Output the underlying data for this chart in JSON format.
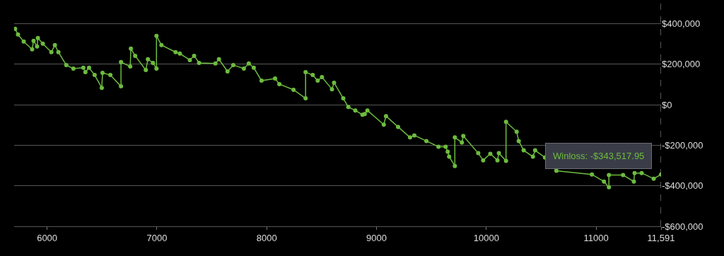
{
  "chart_data": {
    "type": "line",
    "marker": "circle",
    "line_style": "solid",
    "grid": "y",
    "x": [
      5709,
      5735,
      5787,
      5864,
      5877,
      5909,
      5916,
      5961,
      6039,
      6071,
      6103,
      6175,
      6239,
      6330,
      6349,
      6382,
      6433,
      6498,
      6505,
      6576,
      6673,
      6673,
      6757,
      6763,
      6802,
      6899,
      6918,
      6964,
      6996,
      6996,
      7041,
      7170,
      7209,
      7300,
      7339,
      7384,
      7533,
      7565,
      7643,
      7695,
      7792,
      7837,
      7882,
      7953,
      8076,
      8115,
      8244,
      8354,
      8354,
      8419,
      8464,
      8503,
      8594,
      8613,
      8697,
      8743,
      8807,
      8872,
      8892,
      8917,
      9066,
      9086,
      9196,
      9305,
      9344,
      9454,
      9564,
      9629,
      9648,
      9661,
      9713,
      9713,
      9777,
      9790,
      9926,
      9971,
      10036,
      10101,
      10114,
      10179,
      10179,
      10276,
      10295,
      10340,
      10424,
      10444,
      10534,
      10638,
      10961,
      11071,
      11116,
      11116,
      11245,
      11343,
      11350,
      11414,
      11524,
      11591
    ],
    "series": [
      {
        "color": "#6dbb3f",
        "values": [
          375000,
          347000,
          312000,
          274000,
          316000,
          288000,
          330000,
          302000,
          260000,
          295000,
          260000,
          196000,
          179000,
          183000,
          161000,
          183000,
          147000,
          84000,
          158000,
          147000,
          91000,
          211000,
          189000,
          277000,
          242000,
          172000,
          225000,
          207000,
          179000,
          340000,
          295000,
          260000,
          253000,
          221000,
          242000,
          207000,
          204000,
          225000,
          165000,
          196000,
          179000,
          204000,
          183000,
          119000,
          130000,
          102000,
          74000,
          32000,
          161000,
          147000,
          119000,
          137000,
          77000,
          109000,
          32000,
          -11000,
          -28000,
          -49000,
          -46000,
          -28000,
          -98000,
          -56000,
          -109000,
          -161000,
          -151000,
          -179000,
          -207000,
          -207000,
          -232000,
          -256000,
          -302000,
          -161000,
          -186000,
          -154000,
          -239000,
          -274000,
          -242000,
          -274000,
          -239000,
          -277000,
          -84000,
          -133000,
          -179000,
          -225000,
          -256000,
          -225000,
          -260000,
          -326000,
          -344000,
          -379000,
          -407000,
          -347000,
          -347000,
          -379000,
          -337000,
          -337000,
          -365000,
          -344000
        ]
      }
    ],
    "xlim": [
      5700,
      11591
    ],
    "xticks": [
      6000,
      7000,
      8000,
      9000,
      10000,
      11000,
      {
        "value": 11591,
        "label": "11,591"
      }
    ],
    "ylim": [
      -600000,
      500000
    ],
    "yticks": [
      {
        "value": 400000,
        "label": "$400,000"
      },
      {
        "value": 200000,
        "label": "$200,000"
      },
      {
        "value": 0,
        "label": "$0"
      },
      {
        "value": -200000,
        "label": "-$200,000"
      },
      {
        "value": -400000,
        "label": "-$400,000"
      },
      {
        "value": -600000,
        "label": "-$600,000"
      }
    ],
    "ref_lines": [
      {
        "axis": "x",
        "value": 11591,
        "line_style": "dashed",
        "color": "#aaaaaa"
      }
    ],
    "annotations": [
      "Winloss: -$343,517.95"
    ]
  }
}
